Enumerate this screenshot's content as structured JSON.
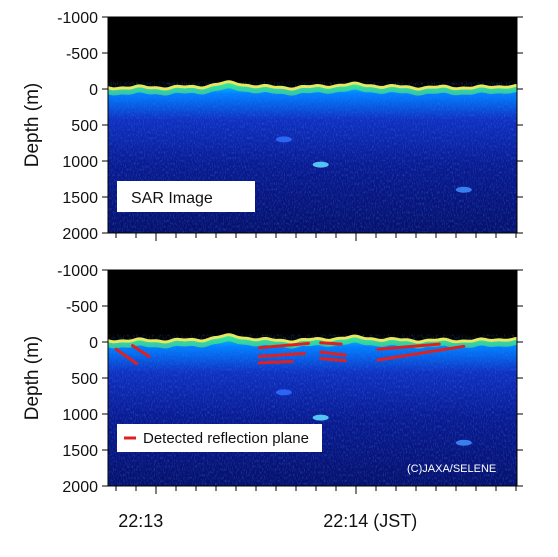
{
  "chart_data": [
    {
      "type": "heatmap",
      "panel": "top",
      "annotation": "SAR Image",
      "ylabel": "Depth (m)",
      "ylim": [
        -1000,
        2000
      ],
      "y_inverted": true,
      "yticks": [
        "-1000",
        "-500",
        "0",
        "500",
        "1000",
        "1500",
        "2000"
      ],
      "ytick_values": [
        -1000,
        -500,
        0,
        500,
        1000,
        1500,
        2000
      ],
      "surface_depth_approx_m": 0
    },
    {
      "type": "heatmap",
      "panel": "bottom",
      "ylabel": "Depth (m)",
      "ylim": [
        -1000,
        2000
      ],
      "y_inverted": true,
      "yticks": [
        "-1000",
        "-500",
        "0",
        "500",
        "1000",
        "1500",
        "2000"
      ],
      "ytick_values": [
        -1000,
        -500,
        0,
        500,
        1000,
        1500,
        2000
      ],
      "legend": {
        "label": "Detected reflection plane",
        "color": "#e02020",
        "position": "bottom-left"
      },
      "credit": "(C)JAXA/SELENE",
      "reflection_planes": [
        {
          "x": [
            0.02,
            0.07
          ],
          "y": [
            100,
            300
          ]
        },
        {
          "x": [
            0.06,
            0.1
          ],
          "y": [
            50,
            200
          ]
        },
        {
          "x": [
            0.37,
            0.49
          ],
          "y": [
            80,
            20
          ]
        },
        {
          "x": [
            0.37,
            0.48
          ],
          "y": [
            200,
            160
          ]
        },
        {
          "x": [
            0.37,
            0.45
          ],
          "y": [
            290,
            270
          ]
        },
        {
          "x": [
            0.52,
            0.57
          ],
          "y": [
            10,
            30
          ]
        },
        {
          "x": [
            0.52,
            0.58
          ],
          "y": [
            140,
            180
          ]
        },
        {
          "x": [
            0.52,
            0.58
          ],
          "y": [
            230,
            260
          ]
        },
        {
          "x": [
            0.66,
            0.81
          ],
          "y": [
            100,
            30
          ]
        },
        {
          "x": [
            0.66,
            0.87
          ],
          "y": [
            250,
            60
          ]
        }
      ]
    }
  ],
  "x_axis": {
    "labels": [
      "22:13",
      "22:14 (JST)"
    ],
    "label_fractions": [
      0.08,
      0.58
    ]
  },
  "colors": {
    "background": "#000000",
    "low_signal": "#0a1a7a",
    "mid_signal": "#00c0ff",
    "high_signal": "#ffff40",
    "surface": "#e8e860",
    "reflection": "#e02020",
    "label_box": "#ffffff"
  }
}
